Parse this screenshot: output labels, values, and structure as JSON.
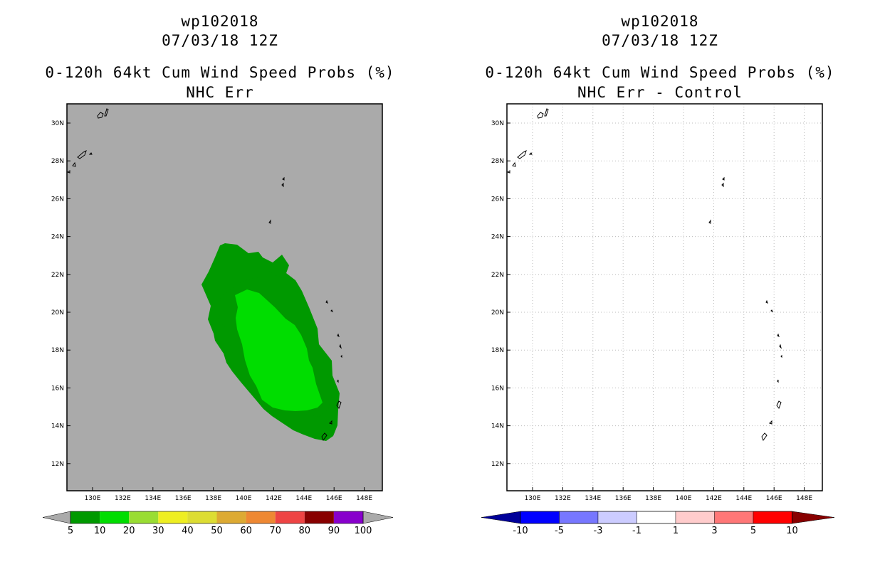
{
  "left": {
    "title_storm": "wp102018",
    "title_time": "07/03/18 12Z",
    "title_product": "0-120h 64kt Cum Wind Speed Probs (%)",
    "title_sub": "NHC Err",
    "lat_ticks": [
      "30N",
      "28N",
      "26N",
      "24N",
      "22N",
      "20N",
      "18N",
      "16N",
      "14N",
      "12N"
    ],
    "lon_ticks": [
      "130E",
      "132E",
      "134E",
      "136E",
      "138E",
      "140E",
      "142E",
      "144E",
      "146E",
      "148E"
    ],
    "colorbar": {
      "colors": [
        "#009900",
        "#00dd00",
        "#99dd33",
        "#eeee22",
        "#dddd33",
        "#ddaa33",
        "#ee8833",
        "#ee4444",
        "#880000",
        "#8800cc"
      ],
      "end_color": "#aaaaaa",
      "labels": [
        "5",
        "10",
        "20",
        "30",
        "40",
        "50",
        "60",
        "70",
        "80",
        "90",
        "100"
      ]
    },
    "background_color": "#aaaaaa",
    "contour_colors": {
      "outer": "#009900",
      "inner": "#00dd00"
    }
  },
  "right": {
    "title_storm": "wp102018",
    "title_time": "07/03/18 12Z",
    "title_product": "0-120h 64kt Cum Wind Speed Probs (%)",
    "title_sub": "NHC Err - Control",
    "lat_ticks": [
      "30N",
      "28N",
      "26N",
      "24N",
      "22N",
      "20N",
      "18N",
      "16N",
      "14N",
      "12N"
    ],
    "lon_ticks": [
      "130E",
      "132E",
      "134E",
      "136E",
      "138E",
      "140E",
      "142E",
      "144E",
      "146E",
      "148E"
    ],
    "colorbar": {
      "colors": [
        "#0000ff",
        "#7777ff",
        "#ccccff",
        "#ffffff",
        "#ffcccc",
        "#ff7777",
        "#ff0000"
      ],
      "end_low": "#000099",
      "end_high": "#880000",
      "labels": [
        "-10",
        "-5",
        "-3",
        "-1",
        "1",
        "3",
        "5",
        "10"
      ]
    },
    "background_color": "#ffffff",
    "grid": "on"
  }
}
